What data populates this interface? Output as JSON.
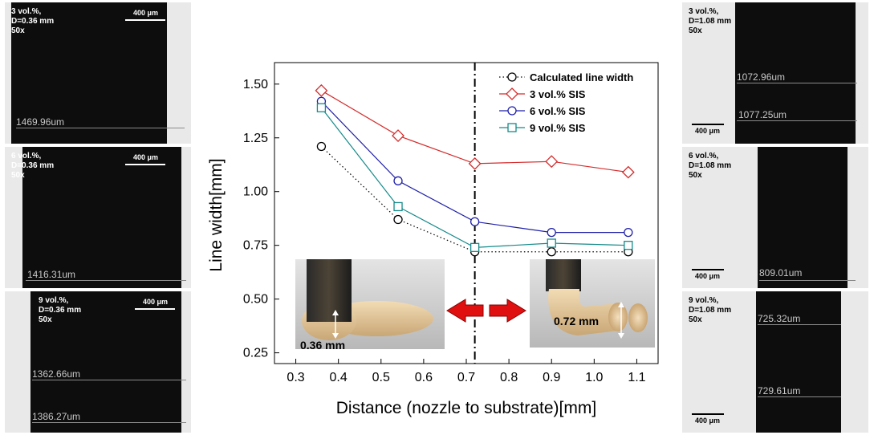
{
  "micrographs": {
    "left": [
      {
        "info": "3 vol.%,\nD=0.36 mm\n50x",
        "scale": "400 μm",
        "measurements": [
          "1469.96um"
        ]
      },
      {
        "info": "6 vol.%,\nD=0.36 mm\n50x",
        "scale": "400 μm",
        "measurements": [
          "1416.31um"
        ]
      },
      {
        "info": "9 vol.%,\nD=0.36 mm\n50x",
        "scale": "400 μm",
        "measurements": [
          "1362.66um",
          "1386.27um"
        ]
      }
    ],
    "right": [
      {
        "info": "3 vol.%,\nD=1.08 mm\n50x",
        "scale": "400 μm",
        "measurements": [
          "1072.96um",
          "1077.25um"
        ]
      },
      {
        "info": "6 vol.%,\nD=1.08 mm\n50x",
        "scale": "400 μm",
        "measurements": [
          "809.01um"
        ]
      },
      {
        "info": "9 vol.%,\nD=1.08 mm\n50x",
        "scale": "400 μm",
        "measurements": [
          "725.32um",
          "729.61um"
        ]
      }
    ]
  },
  "chart_data": {
    "type": "line",
    "xlabel": "Distance (nozzle to substrate)[mm]",
    "ylabel": "Line width[mm]",
    "xlim": [
      0.25,
      1.15
    ],
    "ylim": [
      0.2,
      1.6
    ],
    "xticks": [
      "0.3",
      "0.4",
      "0.5",
      "0.6",
      "0.7",
      "0.8",
      "0.9",
      "1.0",
      "1.1"
    ],
    "yticks": [
      "0.25",
      "0.50",
      "0.75",
      "1.00",
      "1.25",
      "1.50"
    ],
    "grid": false,
    "legend_position": "top-right",
    "vertical_reference_x": 0.72,
    "series": [
      {
        "name": "Calculated line width",
        "color": "#000000",
        "marker": "circle",
        "line": "dotted",
        "x": [
          0.36,
          0.54,
          0.72,
          0.9,
          1.08
        ],
        "values": [
          1.21,
          0.87,
          0.72,
          0.72,
          0.72
        ]
      },
      {
        "name": "3 vol.% SIS",
        "color": "#d42c2c",
        "marker": "diamond",
        "line": "solid",
        "x": [
          0.36,
          0.54,
          0.72,
          0.9,
          1.08
        ],
        "values": [
          1.47,
          1.26,
          1.13,
          1.14,
          1.09
        ]
      },
      {
        "name": "6 vol.% SIS",
        "color": "#1f1fa8",
        "marker": "circle",
        "line": "solid",
        "x": [
          0.36,
          0.54,
          0.72,
          0.9,
          1.08
        ],
        "values": [
          1.42,
          1.05,
          0.86,
          0.81,
          0.81
        ]
      },
      {
        "name": "9 vol.% SIS",
        "color": "#168a8a",
        "marker": "square",
        "line": "solid",
        "x": [
          0.36,
          0.54,
          0.72,
          0.9,
          1.08
        ],
        "values": [
          1.39,
          0.93,
          0.74,
          0.76,
          0.75
        ]
      }
    ],
    "insets": [
      {
        "label": "0.36 mm"
      },
      {
        "label": "0.72 mm"
      }
    ]
  }
}
